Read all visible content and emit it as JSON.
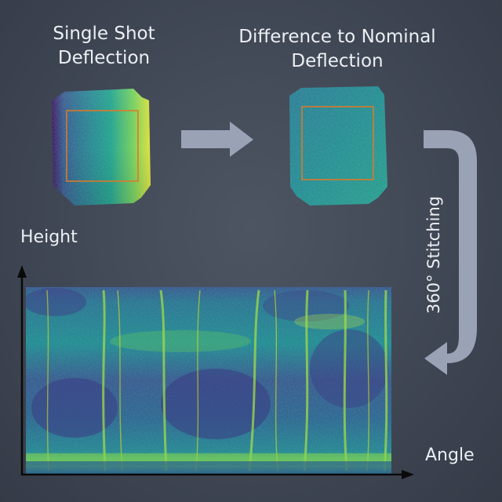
{
  "panels": {
    "single_shot": {
      "title_line1": "Single Shot",
      "title_line2": "Deflection"
    },
    "difference": {
      "title_line1": "Difference to Nominal",
      "title_line2": "Deflection"
    }
  },
  "stitch_label": "360° Stitching",
  "axes": {
    "y_label": "Height",
    "x_label": "Angle"
  },
  "colors": {
    "background": "#424955",
    "arrow": "#9aa3b5",
    "roi_box": "#d97a2b",
    "axis": "#0a0a0a",
    "colormap": [
      "#440154",
      "#3b528b",
      "#21918c",
      "#5ec962",
      "#fde725"
    ]
  }
}
